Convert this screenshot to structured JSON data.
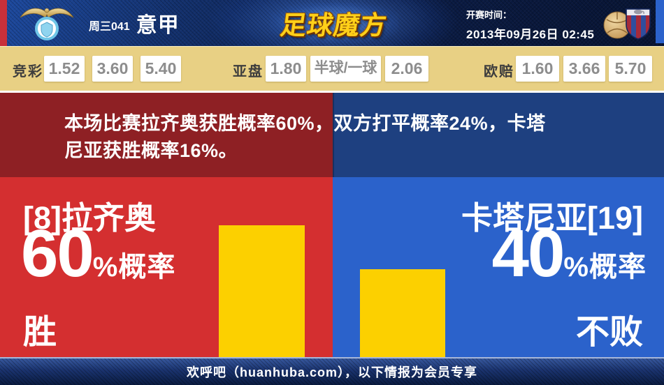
{
  "header": {
    "match_code": "周三041",
    "league": "意甲",
    "site_logo": "足球魔方",
    "kickoff_label": "开赛时间：",
    "kickoff_time": "2013年09月26日 02:45",
    "home_crest": "lazio-crest",
    "away_crest": "catania-crest"
  },
  "odds": {
    "groups": [
      {
        "label": "竞彩",
        "values": [
          "1.52",
          "3.60",
          "5.40"
        ]
      },
      {
        "label": "亚盘",
        "values": [
          "1.80",
          "半球/一球",
          "2.06"
        ]
      },
      {
        "label": "欧赔",
        "values": [
          "1.60",
          "3.66",
          "5.70"
        ]
      }
    ]
  },
  "summary": {
    "line1": "本场比赛拉齐奥获胜概率60%，双方打平概率24%，卡塔",
    "line2": "尼亚获胜概率16%。"
  },
  "home": {
    "name": "[8]拉齐奥",
    "probability": "60",
    "percent_suffix": "%概率",
    "outcome": "胜",
    "bar_percent": 60
  },
  "away": {
    "name": "卡塔尼亚[19]",
    "probability": "40",
    "percent_suffix": "%概率",
    "outcome": "不败",
    "bar_percent": 40
  },
  "footer": {
    "text": "欢呼吧（huanhuba.com），以下情报为会员专享"
  },
  "colors": {
    "accent_yellow": "#FCD000",
    "home_red": "#D42F30",
    "home_dark_red": "#8E2024",
    "away_blue": "#2B62CB",
    "away_dark_blue": "#1E4080",
    "odds_beige": "#E8D084",
    "header_navy": "#0B1D48",
    "logo_gold": "#FFD019"
  },
  "chart_data": {
    "type": "bar",
    "categories": [
      "拉齐奥 胜",
      "卡塔尼亚 不败"
    ],
    "values": [
      60,
      40
    ],
    "title": "获胜概率",
    "ylim": [
      0,
      100
    ]
  }
}
